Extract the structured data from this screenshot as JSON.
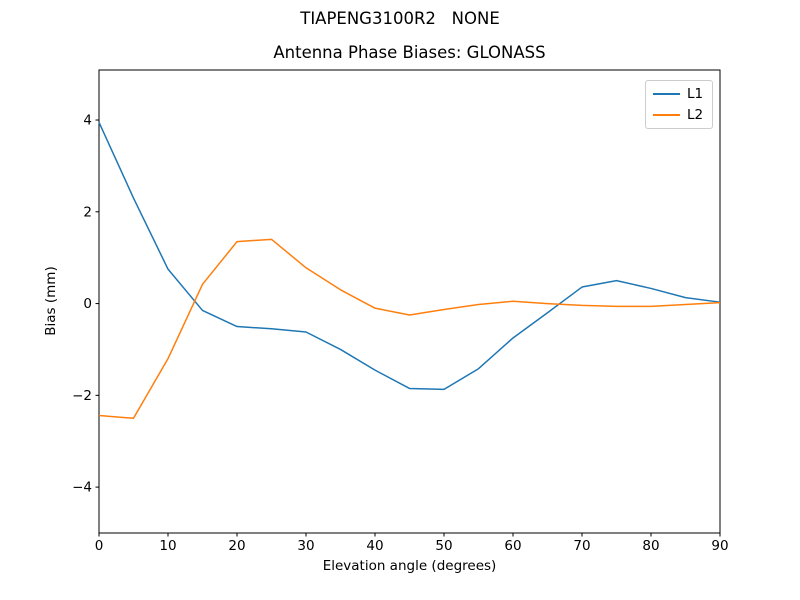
{
  "figure": {
    "suptitle": "TIAPENG3100R2   NONE",
    "background_color": "#ffffff",
    "text_color": "#000000"
  },
  "chart_data": {
    "type": "line",
    "title": "Antenna Phase Biases: GLONASS",
    "xlabel": "Elevation angle (degrees)",
    "ylabel": "Bias (mm)",
    "xlim": [
      0,
      90
    ],
    "ylim": [
      -5.0,
      5.09
    ],
    "xticks": [
      0,
      10,
      20,
      30,
      40,
      50,
      60,
      70,
      80,
      90
    ],
    "xtick_labels": [
      "0",
      "10",
      "20",
      "30",
      "40",
      "50",
      "60",
      "70",
      "80",
      "90"
    ],
    "yticks": [
      -4,
      -2,
      0,
      2,
      4
    ],
    "ytick_labels": [
      "−4",
      "−2",
      "0",
      "2",
      "4"
    ],
    "grid": false,
    "spine_color": "#000000",
    "legend": {
      "position": "upper right",
      "border_color": "#cccccc",
      "entries": [
        "L1",
        "L2"
      ]
    },
    "x": [
      0,
      5,
      10,
      15,
      20,
      25,
      30,
      35,
      40,
      45,
      50,
      55,
      60,
      65,
      70,
      75,
      80,
      85,
      90
    ],
    "series": [
      {
        "name": "L1",
        "color": "#1f77b4",
        "values": [
          3.95,
          2.3,
          0.75,
          -0.15,
          -0.5,
          -0.55,
          -0.62,
          -1.0,
          -1.45,
          -1.85,
          -1.87,
          -1.42,
          -0.75,
          -0.2,
          0.36,
          0.5,
          0.33,
          0.13,
          0.03
        ]
      },
      {
        "name": "L2",
        "color": "#ff7f0e",
        "values": [
          -2.44,
          -2.5,
          -1.2,
          0.42,
          1.35,
          1.4,
          0.78,
          0.3,
          -0.1,
          -0.25,
          -0.13,
          -0.02,
          0.05,
          0.0,
          -0.04,
          -0.06,
          -0.06,
          -0.02,
          0.02
        ]
      }
    ]
  }
}
